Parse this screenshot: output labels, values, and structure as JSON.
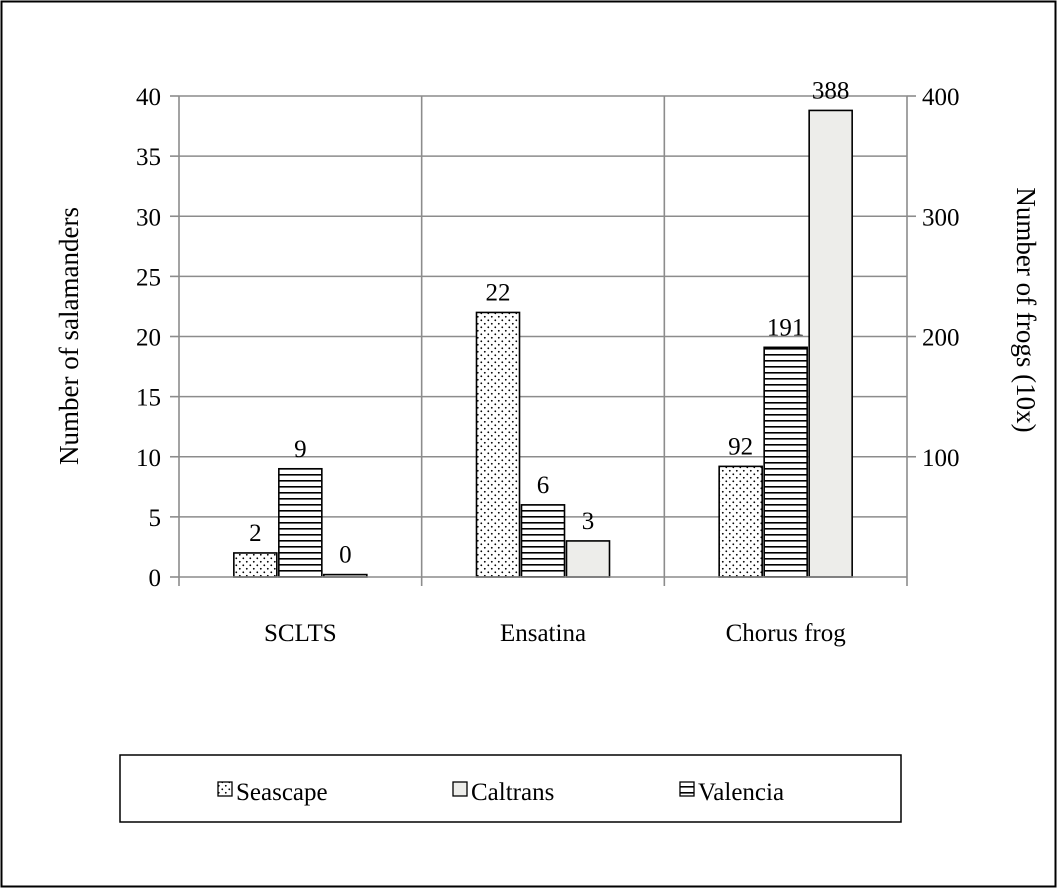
{
  "chart_data": {
    "type": "bar",
    "title": "",
    "categories": [
      "SCLTS",
      "Ensatina",
      "Chorus frog"
    ],
    "ylabel_left": "Number of salamanders",
    "ylabel_right": "Number of frogs (10x)",
    "ylim_left": [
      0,
      40
    ],
    "yticks_left": [
      "0",
      "5",
      "10",
      "15",
      "20",
      "25",
      "30",
      "35",
      "40"
    ],
    "ylim_right": [
      0,
      400
    ],
    "yticks_right": [
      "100",
      "200",
      "300",
      "400"
    ],
    "grid": true,
    "legend_position": "bottom",
    "series": [
      {
        "name": "Seascape",
        "pattern": "dots",
        "plotted": [
          2,
          22,
          9.2
        ],
        "labels": [
          "2",
          "22",
          "92"
        ]
      },
      {
        "name": "Valencia",
        "pattern": "hlines",
        "plotted": [
          9,
          6,
          19.1
        ],
        "labels": [
          "9",
          "6",
          "191"
        ]
      },
      {
        "name": "Caltrans",
        "pattern": "solid",
        "plotted": [
          0.2,
          3,
          38.8
        ],
        "labels": [
          "0",
          "3",
          "388"
        ]
      }
    ],
    "legend_order": [
      "Seascape",
      "Caltrans",
      "Valencia"
    ],
    "colors": {
      "caltrans_fill": "#ededea",
      "stroke": "#000000",
      "grid": "#8c8c8c"
    }
  }
}
